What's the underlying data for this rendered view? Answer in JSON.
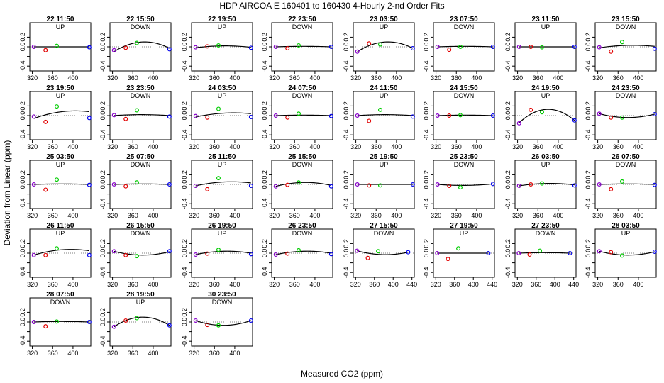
{
  "chart_data": {
    "type": "scatter",
    "title": "HDP   AIRCOA E   160401 to 160430   4-Hourly 2-nd Order Fits",
    "xlabel": "Measured CO2 (ppm)",
    "ylabel": "Deviation from Linear (ppm)",
    "xlim_default": [
      315,
      435
    ],
    "xlim_wide": [
      315,
      445
    ],
    "ylim": [
      -0.5,
      0.5
    ],
    "yticks": [
      -0.4,
      -0.2,
      0.0,
      0.2
    ],
    "ytick_labels": [
      "-0.4",
      "",
      "0.0",
      "0.2"
    ],
    "xticks_default": [
      320,
      360,
      400
    ],
    "xtick_labels_default": [
      "320",
      "360",
      "400"
    ],
    "xticks_wide": [
      320,
      360,
      400,
      440
    ],
    "xtick_labels_wide": [
      "320",
      "360",
      "400",
      "440"
    ],
    "standard_x": [
      323,
      346,
      368,
      432
    ],
    "series_colors": [
      "#8800cc",
      "#e00000",
      "#00cc00",
      "#0000ee"
    ],
    "panels": [
      {
        "label": "22 11:50",
        "dir": "UP",
        "y": [
          0.0,
          -0.07,
          0.02,
          -0.01
        ],
        "curve": [
          0.0,
          0.0,
          0.0
        ]
      },
      {
        "label": "22 15:50",
        "dir": "DOWN",
        "y": [
          -0.07,
          -0.02,
          0.08,
          -0.05
        ],
        "curve": [
          -0.1,
          0.1,
          -0.03
        ]
      },
      {
        "label": "22 19:50",
        "dir": "UP",
        "y": [
          -0.01,
          0.01,
          0.03,
          -0.02
        ],
        "curve": [
          -0.02,
          0.02,
          -0.01
        ]
      },
      {
        "label": "22 23:50",
        "dir": "DOWN",
        "y": [
          0.0,
          -0.03,
          0.03,
          0.0
        ],
        "curve": [
          0.0,
          0.01,
          0.0
        ]
      },
      {
        "label": "23 03:50",
        "dir": "UP",
        "y": [
          -0.1,
          0.07,
          0.05,
          -0.03
        ],
        "curve": [
          -0.1,
          0.1,
          -0.03
        ]
      },
      {
        "label": "23 07:50",
        "dir": "DOWN",
        "y": [
          0.0,
          -0.06,
          0.0,
          0.0
        ],
        "curve": [
          0.0,
          0.01,
          0.0
        ]
      },
      {
        "label": "23 11:50",
        "dir": "UP",
        "y": [
          0.0,
          0.0,
          -0.01,
          0.0
        ],
        "curve": [
          0.0,
          0.0,
          0.0
        ]
      },
      {
        "label": "23 15:50",
        "dir": "DOWN",
        "y": [
          -0.01,
          -0.1,
          0.1,
          -0.04
        ],
        "curve": [
          -0.02,
          0.03,
          0.01
        ]
      },
      {
        "label": "23 19:50",
        "dir": "UP",
        "y": [
          -0.02,
          -0.13,
          0.19,
          -0.05
        ],
        "curve": [
          -0.06,
          0.08,
          0.08
        ]
      },
      {
        "label": "23 23:50",
        "dir": "DOWN",
        "y": [
          0.01,
          -0.07,
          0.11,
          -0.02
        ],
        "curve": [
          0.0,
          0.02,
          0.0
        ]
      },
      {
        "label": "24 03:50",
        "dir": "UP",
        "y": [
          -0.01,
          -0.04,
          0.14,
          -0.03
        ],
        "curve": [
          -0.03,
          0.05,
          0.04
        ]
      },
      {
        "label": "24 07:50",
        "dir": "DOWN",
        "y": [
          0.0,
          -0.04,
          0.04,
          -0.01
        ],
        "curve": [
          0.0,
          0.01,
          0.0
        ]
      },
      {
        "label": "24 11:50",
        "dir": "UP",
        "y": [
          0.0,
          -0.11,
          0.12,
          -0.02
        ],
        "curve": [
          0.0,
          0.02,
          0.0
        ]
      },
      {
        "label": "24 15:50",
        "dir": "DOWN",
        "y": [
          0.0,
          0.0,
          0.01,
          0.0
        ],
        "curve": [
          0.0,
          0.01,
          0.0
        ]
      },
      {
        "label": "24 19:50",
        "dir": "UP",
        "y": [
          -0.16,
          0.12,
          0.07,
          -0.1
        ],
        "curve": [
          -0.15,
          0.13,
          -0.1
        ]
      },
      {
        "label": "24 23:50",
        "dir": "DOWN",
        "y": [
          0.04,
          -0.04,
          -0.04,
          0.03
        ],
        "curve": [
          0.04,
          -0.04,
          0.03
        ]
      },
      {
        "label": "25 03:50",
        "dir": "UP",
        "y": [
          0.0,
          -0.11,
          0.1,
          -0.01
        ],
        "curve": [
          0.0,
          0.01,
          0.0
        ]
      },
      {
        "label": "25 07:50",
        "dir": "DOWN",
        "y": [
          0.0,
          -0.04,
          0.04,
          0.0
        ],
        "curve": [
          0.0,
          0.01,
          0.0
        ]
      },
      {
        "label": "25 11:50",
        "dir": "UP",
        "y": [
          -0.03,
          -0.1,
          0.13,
          -0.03
        ],
        "curve": [
          -0.03,
          0.05,
          0.03
        ]
      },
      {
        "label": "25 15:50",
        "dir": "DOWN",
        "y": [
          -0.04,
          -0.01,
          0.04,
          -0.04
        ],
        "curve": [
          -0.04,
          0.04,
          -0.02
        ]
      },
      {
        "label": "25 19:50",
        "dir": "UP",
        "y": [
          0.0,
          -0.02,
          -0.02,
          0.0
        ],
        "curve": [
          0.0,
          0.0,
          0.0
        ]
      },
      {
        "label": "25 23:50",
        "dir": "DOWN",
        "y": [
          0.0,
          -0.03,
          -0.06,
          0.01
        ],
        "curve": [
          0.0,
          -0.02,
          0.01
        ]
      },
      {
        "label": "26 03:50",
        "dir": "UP",
        "y": [
          -0.03,
          0.0,
          0.02,
          -0.02
        ],
        "curve": [
          -0.03,
          0.02,
          -0.01
        ]
      },
      {
        "label": "26 07:50",
        "dir": "DOWN",
        "y": [
          0.0,
          -0.1,
          0.06,
          -0.01
        ],
        "curve": [
          0.0,
          0.01,
          0.0
        ]
      },
      {
        "label": "26 11:50",
        "dir": "UP",
        "y": [
          -0.04,
          -0.04,
          0.1,
          -0.04
        ],
        "curve": [
          -0.04,
          0.07,
          0.05
        ]
      },
      {
        "label": "26 15:50",
        "dir": "DOWN",
        "y": [
          0.04,
          -0.04,
          -0.06,
          0.04
        ],
        "curve": [
          0.04,
          -0.04,
          0.03
        ]
      },
      {
        "label": "26 19:50",
        "dir": "UP",
        "y": [
          -0.03,
          -0.01,
          0.07,
          -0.02
        ],
        "curve": [
          -0.03,
          0.04,
          0.0
        ]
      },
      {
        "label": "26 23:50",
        "dir": "DOWN",
        "y": [
          -0.03,
          -0.01,
          0.06,
          -0.02
        ],
        "curve": [
          -0.03,
          0.04,
          0.0
        ]
      },
      {
        "label": "27 15:50",
        "dir": "DOWN",
        "y": [
          0.05,
          -0.1,
          0.04,
          0.02
        ],
        "curve": [
          0.05,
          -0.03,
          0.02
        ]
      },
      {
        "label": "27 19:50",
        "dir": "UP",
        "y": [
          0.0,
          -0.12,
          0.1,
          0.0
        ],
        "curve": [
          0.0,
          0.0,
          0.0
        ]
      },
      {
        "label": "27 23:50",
        "dir": "DOWN",
        "y": [
          0.0,
          -0.03,
          0.05,
          0.0
        ],
        "curve": [
          0.0,
          0.01,
          0.0
        ]
      },
      {
        "label": "28 03:50",
        "dir": "UP",
        "y": [
          0.04,
          0.02,
          -0.05,
          0.03
        ],
        "curve": [
          0.04,
          -0.04,
          0.03
        ]
      },
      {
        "label": "28 07:50",
        "dir": "DOWN",
        "y": [
          0.0,
          -0.09,
          0.01,
          0.0
        ],
        "curve": [
          0.0,
          0.01,
          0.0
        ]
      },
      {
        "label": "28 19:50",
        "dir": "UP",
        "y": [
          -0.1,
          0.03,
          0.08,
          -0.07
        ],
        "curve": [
          -0.1,
          0.1,
          -0.07
        ]
      },
      {
        "label": "30 23:50",
        "dir": "DOWN",
        "y": [
          0.03,
          -0.06,
          -0.07,
          0.03
        ],
        "curve": [
          0.03,
          -0.07,
          0.03
        ]
      }
    ]
  }
}
